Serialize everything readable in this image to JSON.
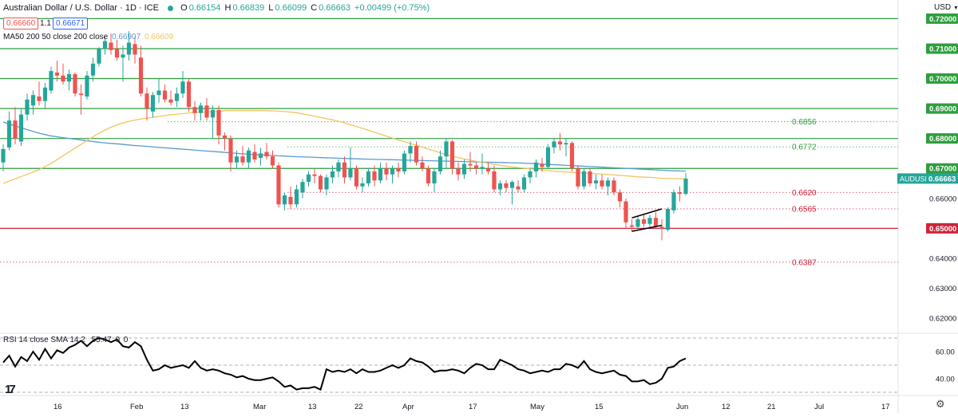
{
  "header": {
    "symbol": "Australian Dollar / U.S. Dollar · 1D · ICE",
    "open_label": "O",
    "open": "0.66154",
    "high_label": "H",
    "high": "0.66839",
    "low_label": "L",
    "low": "0.66099",
    "close_label": "C",
    "close": "0.66663",
    "change": "+0.00499 (+0.75%)",
    "bid": "0.66660",
    "spread": "1.1",
    "ask": "0.66671",
    "ma_label": "MA50 200 50 close 200 close",
    "ma_slow_value": "0.66907",
    "ma_fast_value": "0.66609",
    "rsi_label": "RSI 14 close SMA 14 2",
    "rsi_value": "55.47",
    "rsi_sma_value": "0",
    "rsi_third_value": "0",
    "currency": "USD"
  },
  "colors": {
    "up": "#26a69a",
    "down": "#ef5350",
    "ma_fast": "#f2c45f",
    "ma_slow": "#5b9bd5",
    "resistance": "#2e9e3e",
    "support": "#d0233a",
    "rsi": "#000000"
  },
  "chart_data": [
    {
      "type": "candlestick",
      "title": "Australian Dollar / U.S. Dollar · 1D · ICE",
      "ylim": [
        0.6155,
        0.7225
      ],
      "price_axis_ticks": [
        "0.72000",
        "0.71000",
        "0.70000",
        "0.69000",
        "0.68000",
        "0.67000",
        "0.66000",
        "0.65000",
        "0.64000",
        "0.63000",
        "0.62000"
      ],
      "x_tick_labels": [
        "16",
        "Feb",
        "13",
        "Mar",
        "13",
        "22",
        "Apr",
        "17",
        "May",
        "15",
        "Jun",
        "12",
        "21",
        "Jul",
        "17"
      ],
      "last_price_label": "AUDUSD",
      "last_price": "0.66663",
      "horizontal_levels": [
        {
          "value": 0.72,
          "label": "0.72000",
          "kind": "resistance"
        },
        {
          "value": 0.71,
          "label": "0.71000",
          "kind": "resistance"
        },
        {
          "value": 0.7,
          "label": "0.70000",
          "kind": "resistance"
        },
        {
          "value": 0.69,
          "label": "0.69000",
          "kind": "resistance"
        },
        {
          "value": 0.68,
          "label": "0.68000",
          "kind": "resistance"
        },
        {
          "value": 0.67,
          "label": "0.67000",
          "kind": "resistance"
        },
        {
          "value": 0.65,
          "label": "0.65000",
          "kind": "support"
        }
      ],
      "dotted_levels": [
        {
          "value": 0.6856,
          "label": "0.6856",
          "kind": "resistance"
        },
        {
          "value": 0.6772,
          "label": "0.6772",
          "kind": "resistance"
        },
        {
          "value": 0.662,
          "label": "0.6620",
          "kind": "support"
        },
        {
          "value": 0.6565,
          "label": "0.6565",
          "kind": "support"
        },
        {
          "value": 0.6387,
          "label": "0.6387",
          "kind": "support"
        }
      ],
      "candles": [
        {
          "o": 0.672,
          "h": 0.678,
          "l": 0.669,
          "c": 0.6765
        },
        {
          "o": 0.677,
          "h": 0.689,
          "l": 0.676,
          "c": 0.686
        },
        {
          "o": 0.686,
          "h": 0.6905,
          "l": 0.678,
          "c": 0.68
        },
        {
          "o": 0.679,
          "h": 0.69,
          "l": 0.6775,
          "c": 0.688
        },
        {
          "o": 0.688,
          "h": 0.695,
          "l": 0.686,
          "c": 0.693
        },
        {
          "o": 0.691,
          "h": 0.696,
          "l": 0.688,
          "c": 0.6945
        },
        {
          "o": 0.694,
          "h": 0.699,
          "l": 0.691,
          "c": 0.6925
        },
        {
          "o": 0.6925,
          "h": 0.6985,
          "l": 0.69,
          "c": 0.697
        },
        {
          "o": 0.696,
          "h": 0.704,
          "l": 0.695,
          "c": 0.7025
        },
        {
          "o": 0.702,
          "h": 0.706,
          "l": 0.699,
          "c": 0.701
        },
        {
          "o": 0.701,
          "h": 0.705,
          "l": 0.698,
          "c": 0.699
        },
        {
          "o": 0.699,
          "h": 0.703,
          "l": 0.696,
          "c": 0.7015
        },
        {
          "o": 0.7015,
          "h": 0.702,
          "l": 0.694,
          "c": 0.695
        },
        {
          "o": 0.695,
          "h": 0.698,
          "l": 0.688,
          "c": 0.6945
        },
        {
          "o": 0.694,
          "h": 0.7025,
          "l": 0.693,
          "c": 0.701
        },
        {
          "o": 0.701,
          "h": 0.707,
          "l": 0.699,
          "c": 0.705
        },
        {
          "o": 0.705,
          "h": 0.7105,
          "l": 0.704,
          "c": 0.71
        },
        {
          "o": 0.71,
          "h": 0.714,
          "l": 0.708,
          "c": 0.7125
        },
        {
          "o": 0.712,
          "h": 0.715,
          "l": 0.708,
          "c": 0.7095
        },
        {
          "o": 0.71,
          "h": 0.713,
          "l": 0.706,
          "c": 0.707
        },
        {
          "o": 0.707,
          "h": 0.711,
          "l": 0.699,
          "c": 0.708
        },
        {
          "o": 0.708,
          "h": 0.7158,
          "l": 0.706,
          "c": 0.712
        },
        {
          "o": 0.7115,
          "h": 0.714,
          "l": 0.705,
          "c": 0.708
        },
        {
          "o": 0.707,
          "h": 0.711,
          "l": 0.694,
          "c": 0.695
        },
        {
          "o": 0.695,
          "h": 0.697,
          "l": 0.686,
          "c": 0.69
        },
        {
          "o": 0.689,
          "h": 0.6955,
          "l": 0.687,
          "c": 0.6945
        },
        {
          "o": 0.6945,
          "h": 0.7,
          "l": 0.692,
          "c": 0.696
        },
        {
          "o": 0.696,
          "h": 0.698,
          "l": 0.692,
          "c": 0.693
        },
        {
          "o": 0.693,
          "h": 0.696,
          "l": 0.691,
          "c": 0.692
        },
        {
          "o": 0.6925,
          "h": 0.697,
          "l": 0.6905,
          "c": 0.695
        },
        {
          "o": 0.695,
          "h": 0.7025,
          "l": 0.6935,
          "c": 0.699
        },
        {
          "o": 0.699,
          "h": 0.7,
          "l": 0.689,
          "c": 0.6905
        },
        {
          "o": 0.6905,
          "h": 0.6925,
          "l": 0.686,
          "c": 0.6885
        },
        {
          "o": 0.6885,
          "h": 0.692,
          "l": 0.686,
          "c": 0.691
        },
        {
          "o": 0.691,
          "h": 0.6935,
          "l": 0.686,
          "c": 0.687
        },
        {
          "o": 0.687,
          "h": 0.691,
          "l": 0.68,
          "c": 0.6895
        },
        {
          "o": 0.6895,
          "h": 0.691,
          "l": 0.678,
          "c": 0.681
        },
        {
          "o": 0.681,
          "h": 0.682,
          "l": 0.676,
          "c": 0.68
        },
        {
          "o": 0.68,
          "h": 0.681,
          "l": 0.669,
          "c": 0.672
        },
        {
          "o": 0.672,
          "h": 0.676,
          "l": 0.67,
          "c": 0.674
        },
        {
          "o": 0.674,
          "h": 0.6775,
          "l": 0.671,
          "c": 0.672
        },
        {
          "o": 0.672,
          "h": 0.677,
          "l": 0.67,
          "c": 0.676
        },
        {
          "o": 0.6755,
          "h": 0.678,
          "l": 0.672,
          "c": 0.673
        },
        {
          "o": 0.6735,
          "h": 0.677,
          "l": 0.671,
          "c": 0.675
        },
        {
          "o": 0.6755,
          "h": 0.6785,
          "l": 0.673,
          "c": 0.674
        },
        {
          "o": 0.674,
          "h": 0.676,
          "l": 0.67,
          "c": 0.671
        },
        {
          "o": 0.671,
          "h": 0.672,
          "l": 0.657,
          "c": 0.658
        },
        {
          "o": 0.658,
          "h": 0.662,
          "l": 0.656,
          "c": 0.661
        },
        {
          "o": 0.6605,
          "h": 0.664,
          "l": 0.6565,
          "c": 0.658
        },
        {
          "o": 0.658,
          "h": 0.6645,
          "l": 0.657,
          "c": 0.663
        },
        {
          "o": 0.662,
          "h": 0.6665,
          "l": 0.66,
          "c": 0.6655
        },
        {
          "o": 0.6655,
          "h": 0.669,
          "l": 0.664,
          "c": 0.668
        },
        {
          "o": 0.668,
          "h": 0.67,
          "l": 0.665,
          "c": 0.6675
        },
        {
          "o": 0.6675,
          "h": 0.668,
          "l": 0.662,
          "c": 0.663
        },
        {
          "o": 0.663,
          "h": 0.668,
          "l": 0.661,
          "c": 0.667
        },
        {
          "o": 0.667,
          "h": 0.671,
          "l": 0.665,
          "c": 0.669
        },
        {
          "o": 0.669,
          "h": 0.673,
          "l": 0.667,
          "c": 0.672
        },
        {
          "o": 0.672,
          "h": 0.674,
          "l": 0.665,
          "c": 0.667
        },
        {
          "o": 0.667,
          "h": 0.677,
          "l": 0.666,
          "c": 0.67
        },
        {
          "o": 0.67,
          "h": 0.671,
          "l": 0.663,
          "c": 0.664
        },
        {
          "o": 0.664,
          "h": 0.667,
          "l": 0.662,
          "c": 0.665
        },
        {
          "o": 0.665,
          "h": 0.67,
          "l": 0.664,
          "c": 0.669
        },
        {
          "o": 0.669,
          "h": 0.671,
          "l": 0.664,
          "c": 0.666
        },
        {
          "o": 0.666,
          "h": 0.672,
          "l": 0.665,
          "c": 0.67
        },
        {
          "o": 0.67,
          "h": 0.672,
          "l": 0.666,
          "c": 0.668
        },
        {
          "o": 0.668,
          "h": 0.671,
          "l": 0.665,
          "c": 0.67
        },
        {
          "o": 0.67,
          "h": 0.672,
          "l": 0.667,
          "c": 0.669
        },
        {
          "o": 0.669,
          "h": 0.676,
          "l": 0.668,
          "c": 0.675
        },
        {
          "o": 0.675,
          "h": 0.679,
          "l": 0.672,
          "c": 0.6775
        },
        {
          "o": 0.6775,
          "h": 0.679,
          "l": 0.671,
          "c": 0.672
        },
        {
          "o": 0.672,
          "h": 0.674,
          "l": 0.669,
          "c": 0.67
        },
        {
          "o": 0.67,
          "h": 0.671,
          "l": 0.664,
          "c": 0.665
        },
        {
          "o": 0.665,
          "h": 0.67,
          "l": 0.662,
          "c": 0.669
        },
        {
          "o": 0.669,
          "h": 0.676,
          "l": 0.668,
          "c": 0.674
        },
        {
          "o": 0.674,
          "h": 0.68,
          "l": 0.67,
          "c": 0.679
        },
        {
          "o": 0.679,
          "h": 0.6795,
          "l": 0.668,
          "c": 0.67
        },
        {
          "o": 0.67,
          "h": 0.672,
          "l": 0.666,
          "c": 0.668
        },
        {
          "o": 0.668,
          "h": 0.673,
          "l": 0.6665,
          "c": 0.6715
        },
        {
          "o": 0.6715,
          "h": 0.6755,
          "l": 0.669,
          "c": 0.671
        },
        {
          "o": 0.671,
          "h": 0.672,
          "l": 0.668,
          "c": 0.67
        },
        {
          "o": 0.67,
          "h": 0.675,
          "l": 0.668,
          "c": 0.6705
        },
        {
          "o": 0.67,
          "h": 0.672,
          "l": 0.668,
          "c": 0.669
        },
        {
          "o": 0.669,
          "h": 0.671,
          "l": 0.662,
          "c": 0.663
        },
        {
          "o": 0.663,
          "h": 0.666,
          "l": 0.661,
          "c": 0.665
        },
        {
          "o": 0.665,
          "h": 0.666,
          "l": 0.662,
          "c": 0.6635
        },
        {
          "o": 0.6635,
          "h": 0.666,
          "l": 0.658,
          "c": 0.6655
        },
        {
          "o": 0.664,
          "h": 0.666,
          "l": 0.662,
          "c": 0.663
        },
        {
          "o": 0.663,
          "h": 0.668,
          "l": 0.662,
          "c": 0.667
        },
        {
          "o": 0.667,
          "h": 0.67,
          "l": 0.665,
          "c": 0.669
        },
        {
          "o": 0.669,
          "h": 0.673,
          "l": 0.667,
          "c": 0.672
        },
        {
          "o": 0.6715,
          "h": 0.6735,
          "l": 0.669,
          "c": 0.6705
        },
        {
          "o": 0.6705,
          "h": 0.678,
          "l": 0.67,
          "c": 0.677
        },
        {
          "o": 0.677,
          "h": 0.68,
          "l": 0.675,
          "c": 0.679
        },
        {
          "o": 0.679,
          "h": 0.6818,
          "l": 0.676,
          "c": 0.678
        },
        {
          "o": 0.678,
          "h": 0.68,
          "l": 0.674,
          "c": 0.6785
        },
        {
          "o": 0.6785,
          "h": 0.679,
          "l": 0.669,
          "c": 0.67
        },
        {
          "o": 0.67,
          "h": 0.671,
          "l": 0.663,
          "c": 0.664
        },
        {
          "o": 0.664,
          "h": 0.67,
          "l": 0.663,
          "c": 0.669
        },
        {
          "o": 0.669,
          "h": 0.67,
          "l": 0.664,
          "c": 0.665
        },
        {
          "o": 0.665,
          "h": 0.668,
          "l": 0.663,
          "c": 0.666
        },
        {
          "o": 0.666,
          "h": 0.668,
          "l": 0.663,
          "c": 0.664
        },
        {
          "o": 0.664,
          "h": 0.667,
          "l": 0.661,
          "c": 0.666
        },
        {
          "o": 0.666,
          "h": 0.667,
          "l": 0.661,
          "c": 0.662
        },
        {
          "o": 0.662,
          "h": 0.663,
          "l": 0.657,
          "c": 0.659
        },
        {
          "o": 0.659,
          "h": 0.66,
          "l": 0.65,
          "c": 0.652
        },
        {
          "o": 0.651,
          "h": 0.653,
          "l": 0.649,
          "c": 0.6505
        },
        {
          "o": 0.6505,
          "h": 0.654,
          "l": 0.6495,
          "c": 0.653
        },
        {
          "o": 0.653,
          "h": 0.6545,
          "l": 0.6505,
          "c": 0.6515
        },
        {
          "o": 0.6515,
          "h": 0.6545,
          "l": 0.65,
          "c": 0.6535
        },
        {
          "o": 0.6535,
          "h": 0.6555,
          "l": 0.65,
          "c": 0.6505
        },
        {
          "o": 0.6505,
          "h": 0.653,
          "l": 0.646,
          "c": 0.65
        },
        {
          "o": 0.6495,
          "h": 0.657,
          "l": 0.649,
          "c": 0.6565
        },
        {
          "o": 0.656,
          "h": 0.663,
          "l": 0.655,
          "c": 0.662
        },
        {
          "o": 0.662,
          "h": 0.664,
          "l": 0.659,
          "c": 0.6615
        },
        {
          "o": 0.6615,
          "h": 0.6684,
          "l": 0.661,
          "c": 0.6666
        }
      ],
      "ma_fast": [
        0.665,
        0.6665,
        0.668,
        0.6695,
        0.6715,
        0.674,
        0.6765,
        0.679,
        0.6815,
        0.6835,
        0.685,
        0.686,
        0.6867,
        0.6872,
        0.6878,
        0.6882,
        0.6886,
        0.6888,
        0.689,
        0.6893,
        0.6893,
        0.6893,
        0.6893,
        0.6892,
        0.689,
        0.6885,
        0.6878,
        0.687,
        0.6862,
        0.6852,
        0.684,
        0.6828,
        0.6815,
        0.6802,
        0.679,
        0.6778,
        0.6766,
        0.6754,
        0.6742,
        0.6733,
        0.6725,
        0.6719,
        0.6712,
        0.6706,
        0.6702,
        0.6698,
        0.6694,
        0.669,
        0.6688,
        0.6685,
        0.6683,
        0.6681,
        0.6678,
        0.6675,
        0.6672,
        0.667,
        0.6667,
        0.6666,
        0.6665
      ],
      "ma_slow": [
        0.6855,
        0.6842,
        0.683,
        0.6818,
        0.6809,
        0.6803,
        0.6798,
        0.6793,
        0.6788,
        0.6784,
        0.6781,
        0.6777,
        0.6774,
        0.6771,
        0.6768,
        0.6765,
        0.6762,
        0.6759,
        0.6756,
        0.6753,
        0.675,
        0.6747,
        0.6745,
        0.6743,
        0.6741,
        0.6739,
        0.6738,
        0.6736,
        0.6735,
        0.6733,
        0.6732,
        0.6731,
        0.673,
        0.6729,
        0.6728,
        0.6727,
        0.6726,
        0.6725,
        0.6724,
        0.6723,
        0.6722,
        0.6721,
        0.672,
        0.6719,
        0.6718,
        0.6716,
        0.6714,
        0.6712,
        0.671,
        0.6708,
        0.6706,
        0.6704,
        0.6702,
        0.67,
        0.6698,
        0.6696,
        0.6694,
        0.6692,
        0.6691
      ],
      "channel": {
        "x": [
          1,
          "112"
        ],
        "note": ""
      }
    },
    {
      "type": "line",
      "title": "RSI 14 close SMA 14 2",
      "ylim": [
        30,
        70
      ],
      "y_tick_labels": [
        "60.00",
        "40.00"
      ],
      "guides": [
        70,
        50,
        30
      ],
      "values": [
        52,
        57,
        49,
        56,
        53,
        60,
        54,
        62,
        55,
        61,
        59,
        63,
        65,
        68,
        64,
        68,
        70,
        69,
        67,
        69,
        64,
        63,
        67,
        64,
        54,
        46,
        47,
        50,
        48,
        49,
        50,
        48,
        53,
        48,
        46,
        47,
        46,
        44,
        43,
        41,
        42,
        40,
        39,
        39,
        40,
        41,
        38,
        34,
        35,
        32,
        33,
        33,
        34,
        32,
        47,
        45,
        46,
        45,
        47,
        44,
        47,
        45,
        45,
        46,
        48,
        50,
        48,
        50,
        55,
        53,
        52,
        49,
        45,
        46,
        46,
        47,
        46,
        44,
        48,
        51,
        50,
        47,
        47,
        54,
        52,
        50,
        47,
        46,
        44,
        45,
        46,
        45,
        47,
        47,
        51,
        50,
        48,
        53,
        47,
        45,
        44,
        45,
        46,
        43,
        42,
        38,
        38,
        39,
        36,
        37,
        40,
        48,
        49,
        53,
        55
      ]
    }
  ]
}
